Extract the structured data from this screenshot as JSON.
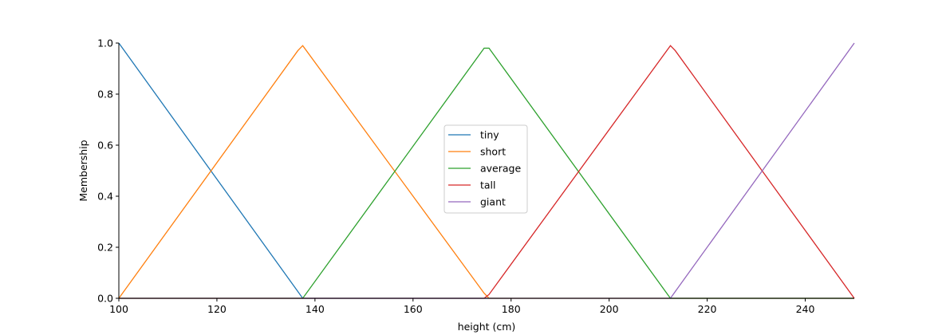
{
  "chart_data": {
    "type": "line",
    "title": "",
    "xlabel": "height (cm)",
    "ylabel": "Membership",
    "xlim": [
      100,
      250
    ],
    "ylim": [
      0,
      1.0
    ],
    "xticks": [
      "100",
      "120",
      "140",
      "160",
      "180",
      "200",
      "220",
      "240"
    ],
    "yticks": [
      "0.0",
      "0.2",
      "0.4",
      "0.6",
      "0.8",
      "1.0"
    ],
    "grid": false,
    "legend_placement": "center",
    "series": [
      {
        "name": "tiny",
        "color": "#1f77b4",
        "x": [
          100,
          136.5,
          137.5,
          250
        ],
        "y": [
          1.0,
          0.027,
          0.0,
          0.0
        ]
      },
      {
        "name": "short",
        "color": "#ff7f0e",
        "x": [
          100,
          136.5,
          137.5,
          174.5,
          175.5,
          250
        ],
        "y": [
          0.0,
          0.97,
          0.99,
          0.02,
          0.0,
          0.0
        ]
      },
      {
        "name": "average",
        "color": "#2ca02c",
        "x": [
          100,
          137.5,
          174.5,
          175.5,
          212.5,
          213.5,
          250
        ],
        "y": [
          0.0,
          0.0,
          0.98,
          0.98,
          0.0,
          0.0,
          0.0
        ]
      },
      {
        "name": "tall",
        "color": "#d62728",
        "x": [
          100,
          174.5,
          175.5,
          212.5,
          213.5,
          250
        ],
        "y": [
          0.0,
          0.0,
          0.015,
          0.99,
          0.97,
          0.0
        ]
      },
      {
        "name": "giant",
        "color": "#9467bd",
        "x": [
          100,
          212.5,
          213.5,
          250
        ],
        "y": [
          0.0,
          0.0,
          0.027,
          1.0
        ]
      }
    ]
  }
}
